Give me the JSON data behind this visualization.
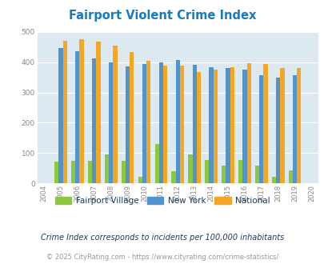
{
  "title": "Fairport Violent Crime Index",
  "years": [
    2004,
    2005,
    2006,
    2007,
    2008,
    2009,
    2010,
    2011,
    2012,
    2013,
    2014,
    2015,
    2016,
    2017,
    2018,
    2019,
    2020
  ],
  "fairport": [
    null,
    73,
    75,
    75,
    96,
    75,
    22,
    130,
    40,
    96,
    77,
    58,
    77,
    58,
    22,
    42,
    null
  ],
  "new_york": [
    null,
    445,
    435,
    413,
    400,
    386,
    394,
    400,
    406,
    391,
    383,
    380,
    376,
    356,
    350,
    356,
    null
  ],
  "national": [
    null,
    469,
    474,
    467,
    455,
    432,
    404,
    387,
    387,
    368,
    376,
    383,
    397,
    394,
    380,
    380,
    null
  ],
  "fairport_color": "#8dc63f",
  "newyork_color": "#4f94cd",
  "national_color": "#f5a623",
  "plot_bg": "#dce9f0",
  "ylim": [
    0,
    500
  ],
  "yticks": [
    0,
    100,
    200,
    300,
    400,
    500
  ],
  "bar_width": 0.25,
  "legend_labels": [
    "Fairport Village",
    "New York",
    "National"
  ],
  "footnote1": "Crime Index corresponds to incidents per 100,000 inhabitants",
  "footnote2": "© 2025 CityRating.com - https://www.cityrating.com/crime-statistics/",
  "title_color": "#1a7abf",
  "footnote1_color": "#1a3a5c",
  "footnote2_color": "#999999",
  "footnote2_link_color": "#4f94cd",
  "tick_color": "#888888",
  "grid_color": "#ffffff",
  "legend_text_color": "#1a3a5c"
}
